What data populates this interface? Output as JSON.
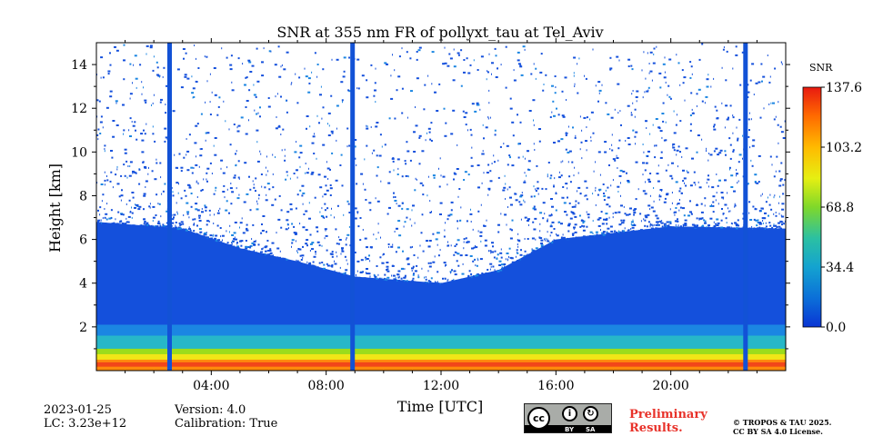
{
  "chart_data": {
    "type": "heatmap",
    "title": "SNR at 355 nm FR of pollyxt_tau at Tel_Aviv",
    "xlabel": "Time [UTC]",
    "ylabel": "Height [km]",
    "x_unit": "hours UTC",
    "xlim": [
      0,
      24
    ],
    "ylim": [
      0,
      15
    ],
    "x_ticks": [
      {
        "value": 4,
        "label": "04:00"
      },
      {
        "value": 8,
        "label": "08:00"
      },
      {
        "value": 12,
        "label": "12:00"
      },
      {
        "value": 16,
        "label": "16:00"
      },
      {
        "value": 20,
        "label": "20:00"
      }
    ],
    "y_ticks": [
      {
        "value": 2,
        "label": "2"
      },
      {
        "value": 4,
        "label": "4"
      },
      {
        "value": 6,
        "label": "6"
      },
      {
        "value": 8,
        "label": "8"
      },
      {
        "value": 10,
        "label": "10"
      },
      {
        "value": 12,
        "label": "12"
      },
      {
        "value": 14,
        "label": "14"
      }
    ],
    "colorbar": {
      "label": "SNR",
      "min": 0.0,
      "max": 137.6,
      "ticks": [
        {
          "value": 0.0,
          "label": "0.0"
        },
        {
          "value": 34.4,
          "label": "34.4"
        },
        {
          "value": 68.8,
          "label": "68.8"
        },
        {
          "value": 103.2,
          "label": "103.2"
        },
        {
          "value": 137.6,
          "label": "137.6"
        }
      ]
    },
    "vertical_stripes_hours": [
      2.55,
      8.92,
      22.6
    ],
    "signal_top_profile_km": [
      {
        "t": 0,
        "top": 6.8
      },
      {
        "t": 3,
        "top": 6.5
      },
      {
        "t": 5,
        "top": 5.6
      },
      {
        "t": 7,
        "top": 5.0
      },
      {
        "t": 9,
        "top": 4.3
      },
      {
        "t": 12,
        "top": 4.0
      },
      {
        "t": 14,
        "top": 4.6
      },
      {
        "t": 16,
        "top": 6.0
      },
      {
        "t": 20,
        "top": 6.6
      },
      {
        "t": 24,
        "top": 6.5
      }
    ],
    "noise_top_km": 15
  },
  "info": {
    "date": "2023-01-25",
    "lc": "LC: 3.23e+12",
    "version": "Version: 4.0",
    "calibration": "Calibration: True"
  },
  "license": {
    "badge_cc": "cc",
    "badge_by": "BY",
    "badge_sa": "SA",
    "preliminary_line1": "Preliminary",
    "preliminary_line2": "Results.",
    "copyright_line1": "© TROPOS & TAU 2025.",
    "copyright_line2": "CC BY SA 4.0 License."
  }
}
